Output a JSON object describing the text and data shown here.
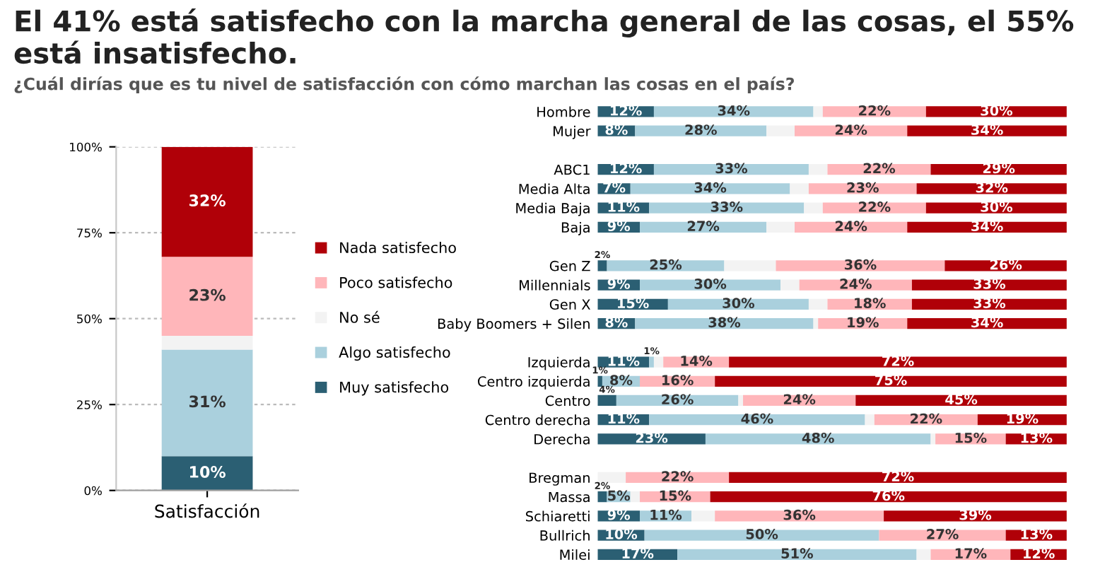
{
  "chart_data": [
    {
      "type": "bar",
      "stacked": true,
      "title": "El 41% está satisfecho con la marcha general de las cosas, el 55% está insatisfecho.",
      "subtitle": "¿Cuál dirías que es tu nivel de satisfacción con cómo marchan las cosas en el país?",
      "categories": [
        "Satisfacción"
      ],
      "ylim": [
        0,
        100
      ],
      "yticks": [
        {
          "value": 0,
          "label": "0%"
        },
        {
          "value": 25,
          "label": "25%"
        },
        {
          "value": 50,
          "label": "50%"
        },
        {
          "value": 75,
          "label": "75%"
        },
        {
          "value": 100,
          "label": "100%"
        }
      ],
      "grid": "y",
      "legend": "right",
      "series": [
        {
          "name": "Muy satisfecho",
          "color": "#2b5f73",
          "values": [
            10
          ],
          "value_labels": [
            "10%"
          ]
        },
        {
          "name": "Algo satisfecho",
          "color": "#aad0dd",
          "values": [
            31
          ],
          "value_labels": [
            "31%"
          ]
        },
        {
          "name": "No sé",
          "color": "#f3f3f3",
          "values": [
            4
          ],
          "value_labels": [
            null
          ]
        },
        {
          "name": "Poco satisfecho",
          "color": "#ffb6ba",
          "values": [
            23
          ],
          "value_labels": [
            "23%"
          ]
        },
        {
          "name": "Nada satisfecho",
          "color": "#b00008",
          "values": [
            32
          ],
          "value_labels": [
            "32%"
          ]
        }
      ]
    },
    {
      "type": "bar",
      "stacked": true,
      "orientation": "horizontal",
      "xlim": [
        0,
        100
      ],
      "tick_labels": "y",
      "categories": [
        "Hombre",
        "Mujer",
        null,
        "ABC1",
        "Media Alta",
        "Media Baja",
        "Baja",
        null,
        "Gen Z",
        "Millennials",
        "Gen X",
        "Baby Boomers + Silen",
        null,
        "Izquierda",
        "Centro izquierda",
        "Centro",
        "Centro derecha",
        "Derecha",
        null,
        "Bregman",
        "Massa",
        "Schiaretti",
        "Bullrich",
        "Milei"
      ],
      "series": [
        {
          "color": "#2b5f73",
          "values": [
            12,
            8,
            null,
            12,
            7,
            11,
            9,
            null,
            2,
            9,
            15,
            8,
            null,
            11,
            1,
            4,
            11,
            23,
            null,
            0,
            2,
            9,
            10,
            17
          ],
          "value_labels": [
            "12%",
            "8%",
            null,
            "12%",
            "7%",
            "11%",
            "9%",
            null,
            "2%",
            "9%",
            "15%",
            "8%",
            null,
            "11%",
            "1%",
            "4%",
            "11%",
            "23%",
            null,
            null,
            "2%",
            "9%",
            "10%",
            "17%"
          ]
        },
        {
          "color": "#aad0dd",
          "values": [
            34,
            28,
            null,
            33,
            34,
            33,
            27,
            null,
            25,
            30,
            30,
            38,
            null,
            1,
            8,
            26,
            46,
            48,
            null,
            0,
            5,
            11,
            50,
            51
          ],
          "value_labels": [
            "34%",
            "28%",
            null,
            "33%",
            "34%",
            "33%",
            "27%",
            null,
            "25%",
            "30%",
            "30%",
            "38%",
            null,
            "1%",
            "8%",
            "26%",
            "46%",
            "48%",
            null,
            null,
            "5%",
            "11%",
            "50%",
            "51%"
          ]
        },
        {
          "color": "#f3f3f3",
          "values": [
            2,
            6,
            null,
            4,
            4,
            4,
            6,
            null,
            11,
            4,
            4,
            1,
            null,
            2,
            0,
            1,
            2,
            1,
            null,
            6,
            2,
            5,
            0,
            3
          ]
        },
        {
          "color": "#ffb6ba",
          "values": [
            22,
            24,
            null,
            22,
            23,
            22,
            24,
            null,
            36,
            24,
            18,
            19,
            null,
            14,
            16,
            24,
            22,
            15,
            null,
            22,
            15,
            36,
            27,
            17
          ],
          "value_labels": [
            "22%",
            "24%",
            null,
            "22%",
            "23%",
            "22%",
            "24%",
            null,
            "36%",
            "24%",
            "18%",
            "19%",
            null,
            "14%",
            "16%",
            "24%",
            "22%",
            "15%",
            null,
            "22%",
            "15%",
            "36%",
            "27%",
            "17%"
          ]
        },
        {
          "color": "#b00008",
          "values": [
            30,
            34,
            null,
            29,
            32,
            30,
            34,
            null,
            26,
            33,
            33,
            34,
            null,
            72,
            75,
            45,
            19,
            13,
            null,
            72,
            76,
            39,
            13,
            12
          ],
          "value_labels": [
            "30%",
            "34%",
            null,
            "29%",
            "32%",
            "30%",
            "34%",
            null,
            "26%",
            "33%",
            "33%",
            "34%",
            null,
            "72%",
            "75%",
            "45%",
            "19%",
            "13%",
            null,
            "72%",
            "76%",
            "39%",
            "13%",
            "12%"
          ]
        }
      ]
    }
  ]
}
